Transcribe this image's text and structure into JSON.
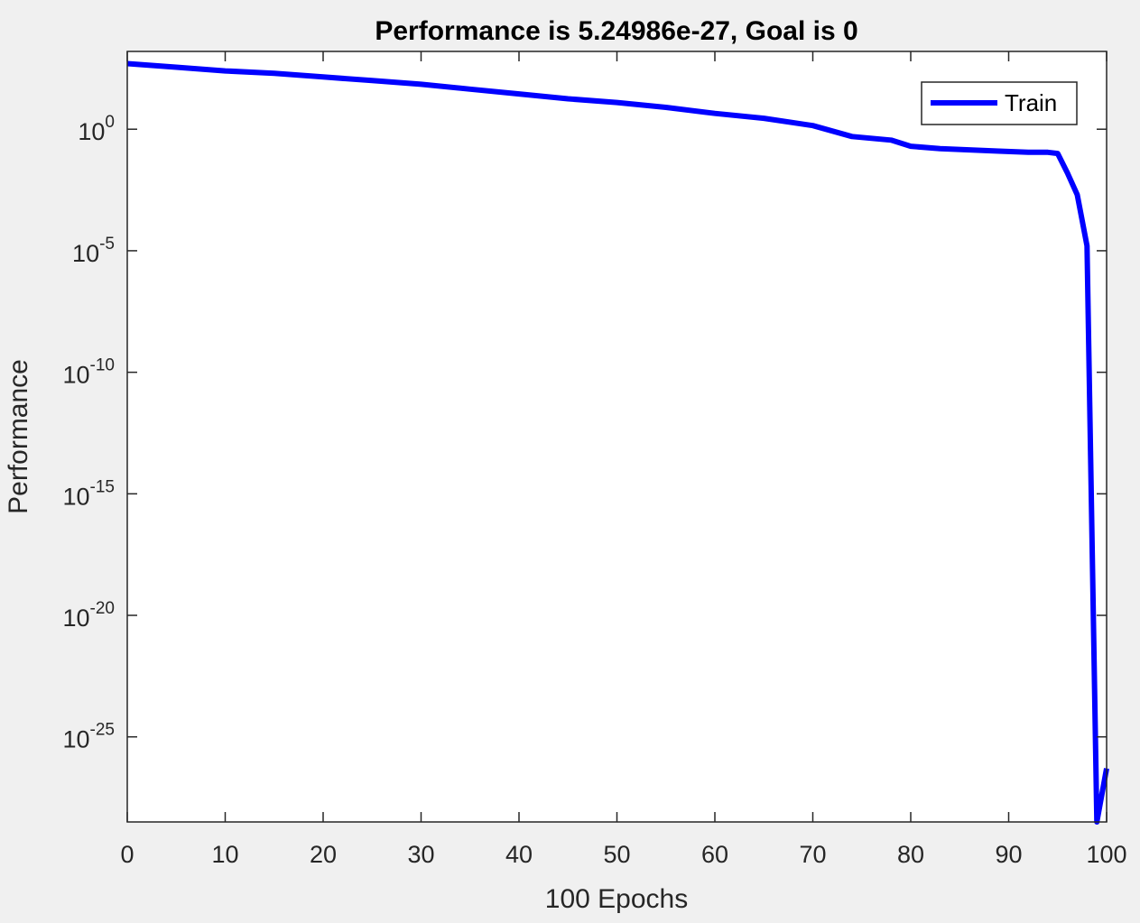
{
  "chart_data": {
    "type": "line",
    "title": "Performance is 5.24986e-27, Goal is 0",
    "xlabel": "100 Epochs",
    "ylabel": "Performance",
    "xlim": [
      0,
      100
    ],
    "ylim_log10": [
      -28.5,
      3.2
    ],
    "yscale": "log",
    "grid": false,
    "legend_position": "top-right",
    "x_ticks": [
      0,
      10,
      20,
      30,
      40,
      50,
      60,
      70,
      80,
      90,
      100
    ],
    "x_tick_labels": [
      "0",
      "10",
      "20",
      "30",
      "40",
      "50",
      "60",
      "70",
      "80",
      "90",
      "100"
    ],
    "y_ticks_log10": [
      0,
      -5,
      -10,
      -15,
      -20,
      -25
    ],
    "y_tick_labels": [
      {
        "base": "10",
        "exp": "0"
      },
      {
        "base": "10",
        "exp": "-5"
      },
      {
        "base": "10",
        "exp": "-10"
      },
      {
        "base": "10",
        "exp": "-15"
      },
      {
        "base": "10",
        "exp": "-20"
      },
      {
        "base": "10",
        "exp": "-25"
      }
    ],
    "series": [
      {
        "name": "Train",
        "color": "#0000ff",
        "x": [
          0,
          5,
          10,
          15,
          20,
          25,
          30,
          35,
          40,
          45,
          50,
          55,
          60,
          65,
          70,
          74,
          78,
          80,
          83,
          86,
          89,
          92,
          94,
          95,
          96,
          97,
          98,
          99,
          100
        ],
        "y_log10": [
          2.7,
          2.55,
          2.4,
          2.3,
          2.15,
          2.0,
          1.85,
          1.65,
          1.45,
          1.25,
          1.1,
          0.9,
          0.65,
          0.45,
          0.15,
          -0.3,
          -0.45,
          -0.7,
          -0.8,
          -0.85,
          -0.9,
          -0.95,
          -0.95,
          -1.0,
          -1.8,
          -2.7,
          -4.8,
          -28.5,
          -26.3
        ]
      }
    ]
  }
}
